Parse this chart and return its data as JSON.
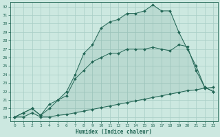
{
  "xlabel": "Humidex (Indice chaleur)",
  "xlim": [
    -0.5,
    23.5
  ],
  "ylim": [
    18.5,
    32.5
  ],
  "xticks": [
    0,
    1,
    2,
    3,
    4,
    5,
    6,
    7,
    8,
    9,
    10,
    11,
    12,
    13,
    14,
    15,
    16,
    17,
    18,
    19,
    20,
    21,
    22,
    23
  ],
  "yticks": [
    19,
    20,
    21,
    22,
    23,
    24,
    25,
    26,
    27,
    28,
    29,
    30,
    31,
    32
  ],
  "bg_color": "#cce8e0",
  "grid_color": "#a8cec6",
  "line_color": "#226655",
  "line1_x": [
    0,
    1,
    2,
    3,
    4,
    5,
    6,
    7,
    8,
    9,
    10,
    11,
    12,
    13,
    14,
    15,
    16,
    17,
    18,
    19,
    20,
    21,
    22,
    23
  ],
  "line1_y": [
    19.0,
    19.0,
    19.5,
    19.0,
    19.0,
    19.2,
    19.3,
    19.5,
    19.7,
    19.9,
    20.1,
    20.3,
    20.5,
    20.7,
    20.9,
    21.1,
    21.3,
    21.5,
    21.7,
    21.9,
    22.1,
    22.2,
    22.4,
    22.5
  ],
  "line2_x": [
    0,
    1,
    2,
    3,
    4,
    5,
    6,
    7,
    8,
    9,
    10,
    11,
    12,
    13,
    14,
    15,
    16,
    17,
    18,
    19,
    20,
    21,
    22,
    23
  ],
  "line2_y": [
    19.0,
    19.5,
    20.0,
    19.2,
    20.5,
    21.0,
    21.5,
    23.5,
    24.5,
    25.5,
    26.0,
    26.5,
    26.5,
    27.0,
    27.0,
    27.0,
    27.2,
    27.0,
    26.8,
    27.5,
    27.3,
    24.5,
    22.5,
    22.0
  ],
  "line3_x": [
    0,
    1,
    2,
    3,
    4,
    5,
    6,
    7,
    8,
    9,
    10,
    11,
    12,
    13,
    14,
    15,
    16,
    17,
    18,
    19,
    20,
    21,
    22,
    23
  ],
  "line3_y": [
    19.0,
    19.5,
    20.0,
    19.2,
    20.0,
    21.0,
    22.0,
    24.0,
    26.5,
    27.5,
    29.5,
    30.2,
    30.5,
    31.2,
    31.2,
    31.5,
    32.2,
    31.5,
    31.5,
    29.0,
    27.0,
    25.0,
    22.5,
    22.0
  ]
}
